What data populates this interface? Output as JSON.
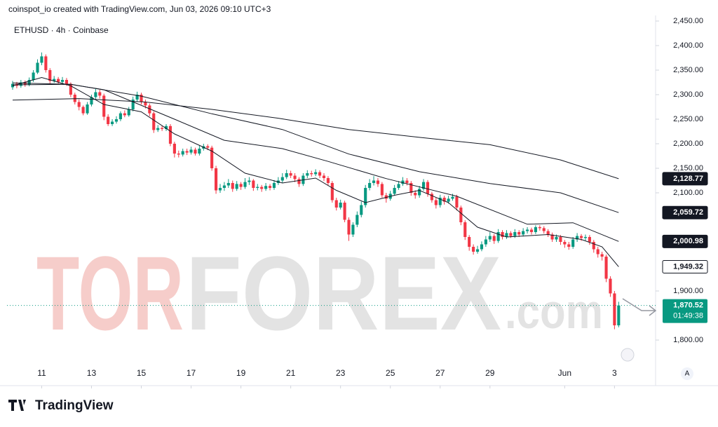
{
  "header": "coinspot_io created with TradingView.com, Jun 03, 2026 09:10 UTC+3",
  "watermark": {
    "parts": [
      "TOR",
      "FOREX",
      ".com"
    ],
    "colors": [
      "#f6cdca",
      "#e3e3e3",
      "#e3e3e3"
    ]
  },
  "footer": {
    "logo": "TradingView",
    "auto_button": "A"
  },
  "chart_data": {
    "type": "candlestick",
    "title": "ETHUSD · 4h · Coinbase",
    "up_color": "#089981",
    "down_color": "#f23645",
    "xlim": [
      -1.35,
      154.9
    ],
    "ylim": [
      1770,
      2460
    ],
    "grid": false,
    "xticks": [
      {
        "value": 7,
        "label": "11"
      },
      {
        "value": 19,
        "label": "13"
      },
      {
        "value": 31,
        "label": "15"
      },
      {
        "value": 43,
        "label": "17"
      },
      {
        "value": 55,
        "label": "19"
      },
      {
        "value": 67,
        "label": "21"
      },
      {
        "value": 79,
        "label": "23"
      },
      {
        "value": 91,
        "label": "25"
      },
      {
        "value": 103,
        "label": "27"
      },
      {
        "value": 115,
        "label": "29"
      },
      {
        "value": 133,
        "label": "Jun"
      },
      {
        "value": 145,
        "label": "3"
      }
    ],
    "yticks": [
      {
        "value": 2450,
        "label": "2,450.00"
      },
      {
        "value": 2400,
        "label": "2,400.00"
      },
      {
        "value": 2350,
        "label": "2,350.00"
      },
      {
        "value": 2300,
        "label": "2,300.00"
      },
      {
        "value": 2250,
        "label": "2,250.00"
      },
      {
        "value": 2200,
        "label": "2,200.00"
      },
      {
        "value": 2150,
        "label": "2,150.00"
      },
      {
        "value": 2100,
        "label": "2,100.00"
      },
      {
        "value": 1900,
        "label": "1,900.00"
      },
      {
        "value": 1800,
        "label": "1,800.00"
      }
    ],
    "open": [
      2315,
      2322,
      2318,
      2325,
      2320,
      2330,
      2345,
      2365,
      2378,
      2350,
      2328,
      2332,
      2326,
      2330,
      2322,
      2300,
      2285,
      2275,
      2262,
      2280,
      2295,
      2305,
      2298,
      2255,
      2240,
      2245,
      2250,
      2262,
      2258,
      2270,
      2290,
      2300,
      2285,
      2278,
      2262,
      2228,
      2232,
      2230,
      2236,
      2200,
      2180,
      2178,
      2185,
      2182,
      2188,
      2180,
      2190,
      2195,
      2192,
      2150,
      2105,
      2110,
      2115,
      2120,
      2108,
      2118,
      2112,
      2122,
      2125,
      2110,
      2112,
      2108,
      2114,
      2110,
      2120,
      2125,
      2132,
      2140,
      2135,
      2128,
      2118,
      2135,
      2140,
      2138,
      2142,
      2135,
      2130,
      2120,
      2085,
      2070,
      2080,
      2045,
      2015,
      2035,
      2055,
      2075,
      2110,
      2120,
      2125,
      2118,
      2095,
      2088,
      2098,
      2110,
      2118,
      2125,
      2120,
      2100,
      2095,
      2108,
      2122,
      2098,
      2085,
      2075,
      2090,
      2082,
      2088,
      2092,
      2070,
      2040,
      2010,
      1990,
      1980,
      1985,
      1995,
      2005,
      2012,
      2002,
      2020,
      2010,
      2018,
      2012,
      2020,
      2015,
      2022,
      2025,
      2020,
      2030,
      2028,
      2022,
      2015,
      2005,
      2010,
      2000,
      1995,
      1990,
      2005,
      2012,
      2008,
      2010,
      2000,
      1985,
      1975,
      1970,
      1925,
      1895,
      1830
    ],
    "high": [
      2328,
      2326,
      2330,
      2329,
      2335,
      2350,
      2372,
      2386,
      2382,
      2354,
      2338,
      2336,
      2336,
      2334,
      2325,
      2304,
      2290,
      2278,
      2285,
      2300,
      2312,
      2310,
      2302,
      2260,
      2250,
      2256,
      2266,
      2268,
      2275,
      2296,
      2306,
      2304,
      2290,
      2282,
      2266,
      2238,
      2236,
      2240,
      2240,
      2204,
      2186,
      2190,
      2190,
      2194,
      2192,
      2196,
      2200,
      2199,
      2196,
      2155,
      2118,
      2122,
      2128,
      2125,
      2124,
      2122,
      2130,
      2132,
      2128,
      2118,
      2116,
      2120,
      2118,
      2126,
      2132,
      2140,
      2147,
      2145,
      2140,
      2132,
      2140,
      2146,
      2145,
      2148,
      2146,
      2140,
      2134,
      2124,
      2090,
      2086,
      2084,
      2050,
      2040,
      2062,
      2082,
      2116,
      2128,
      2134,
      2130,
      2122,
      2100,
      2104,
      2116,
      2124,
      2132,
      2130,
      2124,
      2105,
      2114,
      2128,
      2126,
      2102,
      2090,
      2096,
      2094,
      2094,
      2098,
      2096,
      2074,
      2044,
      2014,
      1995,
      1992,
      2001,
      2012,
      2020,
      2016,
      2026,
      2024,
      2024,
      2022,
      2026,
      2024,
      2028,
      2030,
      2029,
      2034,
      2034,
      2032,
      2026,
      2019,
      2015,
      2014,
      2004,
      2000,
      2010,
      2018,
      2016,
      2015,
      2014,
      2004,
      1990,
      1980,
      1974,
      1930,
      1900,
      1878
    ],
    "low": [
      2310,
      2313,
      2314,
      2316,
      2317,
      2326,
      2342,
      2360,
      2345,
      2322,
      2324,
      2321,
      2322,
      2318,
      2295,
      2280,
      2268,
      2258,
      2259,
      2276,
      2290,
      2292,
      2248,
      2236,
      2236,
      2241,
      2246,
      2254,
      2255,
      2266,
      2286,
      2280,
      2272,
      2256,
      2222,
      2224,
      2226,
      2226,
      2195,
      2172,
      2172,
      2174,
      2177,
      2178,
      2176,
      2176,
      2186,
      2187,
      2145,
      2098,
      2100,
      2104,
      2110,
      2102,
      2104,
      2106,
      2108,
      2116,
      2104,
      2105,
      2102,
      2104,
      2105,
      2106,
      2116,
      2120,
      2128,
      2130,
      2122,
      2112,
      2114,
      2130,
      2133,
      2134,
      2130,
      2124,
      2115,
      2080,
      2064,
      2066,
      2040,
      2002,
      2010,
      2030,
      2050,
      2070,
      2105,
      2115,
      2112,
      2090,
      2080,
      2084,
      2094,
      2106,
      2114,
      2115,
      2094,
      2088,
      2090,
      2104,
      2092,
      2080,
      2068,
      2070,
      2076,
      2078,
      2084,
      2064,
      2034,
      2004,
      1982,
      1974,
      1976,
      1981,
      1990,
      2000,
      1996,
      1998,
      2005,
      2006,
      2008,
      2008,
      2010,
      2011,
      2017,
      2015,
      2016,
      2023,
      2017,
      2010,
      2000,
      2000,
      1994,
      1988,
      1984,
      1986,
      2000,
      2002,
      2003,
      1994,
      1978,
      1968,
      1962,
      1918,
      1888,
      1822,
      1826
    ],
    "close": [
      2322,
      2318,
      2325,
      2320,
      2330,
      2345,
      2365,
      2378,
      2350,
      2328,
      2332,
      2326,
      2330,
      2322,
      2300,
      2285,
      2275,
      2262,
      2280,
      2295,
      2305,
      2298,
      2255,
      2240,
      2245,
      2250,
      2262,
      2258,
      2270,
      2290,
      2300,
      2285,
      2278,
      2262,
      2228,
      2232,
      2230,
      2236,
      2200,
      2180,
      2178,
      2185,
      2182,
      2188,
      2180,
      2190,
      2195,
      2192,
      2150,
      2105,
      2110,
      2115,
      2120,
      2108,
      2118,
      2112,
      2122,
      2125,
      2110,
      2112,
      2108,
      2114,
      2110,
      2120,
      2125,
      2132,
      2140,
      2135,
      2128,
      2118,
      2135,
      2140,
      2138,
      2142,
      2135,
      2130,
      2120,
      2085,
      2070,
      2080,
      2045,
      2015,
      2035,
      2055,
      2075,
      2110,
      2120,
      2125,
      2118,
      2095,
      2088,
      2098,
      2110,
      2118,
      2125,
      2120,
      2100,
      2095,
      2108,
      2122,
      2098,
      2085,
      2075,
      2090,
      2082,
      2088,
      2092,
      2070,
      2040,
      2010,
      1990,
      1980,
      1985,
      1995,
      2005,
      2012,
      2002,
      2020,
      2010,
      2018,
      2012,
      2020,
      2015,
      2022,
      2025,
      2020,
      2030,
      2028,
      2022,
      2015,
      2005,
      2010,
      2000,
      1995,
      1990,
      2005,
      2012,
      2008,
      2010,
      2000,
      1985,
      1975,
      1970,
      1925,
      1895,
      1830,
      1870.52
    ],
    "last_price": {
      "value": 1870.52,
      "label": "1,870.52"
    },
    "countdown": "01:49:38",
    "series": [
      {
        "type": "line",
        "color": "#131722",
        "badge_fill": "#131722",
        "badge_text_color": "#ffffff",
        "x": [
          0,
          16,
          32,
          48,
          64,
          81,
          98,
          115,
          132,
          146
        ],
        "values": [
          2289,
          2292,
          2285,
          2270,
          2252,
          2229,
          2213,
          2198,
          2167,
          2128.77
        ],
        "price_label": {
          "value": 2128.77,
          "label": "2,128.77"
        }
      },
      {
        "type": "line",
        "color": "#131722",
        "badge_fill": "#131722",
        "badge_text_color": "#ffffff",
        "x": [
          0,
          14,
          31,
          48,
          65,
          81,
          98,
          115,
          132,
          146
        ],
        "values": [
          2324,
          2321,
          2297,
          2261,
          2229,
          2179,
          2143,
          2119,
          2100,
          2059.72
        ],
        "price_label": {
          "value": 2059.72,
          "label": "2,059.72"
        }
      },
      {
        "type": "line",
        "color": "#131722",
        "badge_fill": "#131722",
        "badge_text_color": "#ffffff",
        "x": [
          0,
          14,
          22,
          39,
          51,
          65,
          76,
          90,
          107,
          124,
          135,
          146
        ],
        "values": [
          2320,
          2321,
          2310,
          2250,
          2207,
          2190,
          2164,
          2129,
          2093,
          2036,
          2039,
          2000.98
        ],
        "price_label": {
          "value": 2000.98,
          "label": "2,000.98"
        }
      },
      {
        "type": "line",
        "color": "#131722",
        "badge_fill": "#ffffff",
        "badge_text_color": "#131722",
        "x": [
          0,
          7,
          14,
          22,
          31,
          39,
          48,
          56,
          65,
          73,
          78,
          85,
          92,
          98,
          105,
          112,
          119,
          129,
          137,
          142,
          146
        ],
        "values": [
          2318,
          2335,
          2318,
          2280,
          2265,
          2220,
          2185,
          2140,
          2120,
          2130,
          2105,
          2080,
          2095,
          2105,
          2080,
          2030,
          2010,
          2015,
          2005,
          1990,
          1949.32
        ],
        "price_label": {
          "value": 1949.32,
          "label": "1,949.32"
        }
      }
    ]
  }
}
